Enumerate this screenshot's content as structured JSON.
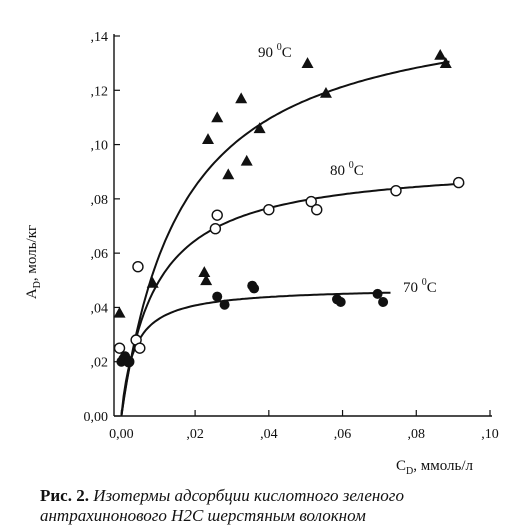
{
  "caption": {
    "lead": "Рис. 2.",
    "text": "Изотермы адсорбции кислотного зеленого антрахинонового Н2С шерстяным волокном"
  },
  "chart_data": {
    "type": "scatter",
    "ylabel": "Aₚ, моль/кг",
    "ylabel_main": "A",
    "ylabel_sub": "D",
    "ylabel_rest": ", моль/кг",
    "xlabel_main": "C",
    "xlabel_sub": "D",
    "xlabel_rest": ", ммоль/л",
    "xlim": [
      -0.002,
      0.1
    ],
    "ylim": [
      0.0,
      0.14
    ],
    "x_ticks": [
      {
        "value": 0.0,
        "label": "0,00"
      },
      {
        "value": 0.02,
        "label": ",02"
      },
      {
        "value": 0.04,
        "label": ",04"
      },
      {
        "value": 0.06,
        "label": ",06"
      },
      {
        "value": 0.08,
        "label": ",08"
      },
      {
        "value": 0.1,
        "label": ",10"
      }
    ],
    "y_ticks": [
      {
        "value": 0.0,
        "label": "0,00"
      },
      {
        "value": 0.02,
        "label": ",02"
      },
      {
        "value": 0.04,
        "label": ",04"
      },
      {
        "value": 0.06,
        "label": ",06"
      },
      {
        "value": 0.08,
        "label": ",08"
      },
      {
        "value": 0.1,
        "label": ",10"
      },
      {
        "value": 0.12,
        "label": ",12"
      },
      {
        "value": 0.14,
        "label": ",14"
      }
    ],
    "grid": false,
    "series": [
      {
        "name": "90 °C",
        "label_main": "90",
        "label_sup": "0",
        "label_unit": "C",
        "marker": "triangle",
        "curve": {
          "qmax": 0.155,
          "k": 60
        },
        "points": [
          [
            -0.0005,
            0.038
          ],
          [
            0.0005,
            0.022
          ],
          [
            0.001,
            0.021
          ],
          [
            0.0085,
            0.049
          ],
          [
            0.0225,
            0.053
          ],
          [
            0.023,
            0.05
          ],
          [
            0.0235,
            0.102
          ],
          [
            0.026,
            0.11
          ],
          [
            0.029,
            0.089
          ],
          [
            0.0325,
            0.117
          ],
          [
            0.034,
            0.094
          ],
          [
            0.0375,
            0.106
          ],
          [
            0.0505,
            0.13
          ],
          [
            0.0555,
            0.119
          ],
          [
            0.0865,
            0.133
          ],
          [
            0.088,
            0.13
          ]
        ]
      },
      {
        "name": "80 °C",
        "label_main": "80",
        "label_sup": "0",
        "label_unit": "C",
        "marker": "circle-open",
        "curve": {
          "qmax": 0.094,
          "k": 110
        },
        "points": [
          [
            -0.0005,
            0.025
          ],
          [
            0.002,
            0.02
          ],
          [
            0.004,
            0.028
          ],
          [
            0.005,
            0.025
          ],
          [
            0.0045,
            0.055
          ],
          [
            0.0255,
            0.069
          ],
          [
            0.026,
            0.074
          ],
          [
            0.04,
            0.076
          ],
          [
            0.0515,
            0.079
          ],
          [
            0.053,
            0.076
          ],
          [
            0.0745,
            0.083
          ],
          [
            0.0915,
            0.086
          ]
        ]
      },
      {
        "name": "70 °C",
        "label_main": "70",
        "label_sup": "0",
        "label_unit": "C",
        "marker": "circle-filled",
        "curve": {
          "qmax": 0.0475,
          "k": 300
        },
        "points": [
          [
            0.0,
            0.02
          ],
          [
            0.0005,
            0.021
          ],
          [
            0.001,
            0.022
          ],
          [
            0.002,
            0.02
          ],
          [
            0.026,
            0.044
          ],
          [
            0.028,
            0.041
          ],
          [
            0.0355,
            0.048
          ],
          [
            0.036,
            0.047
          ],
          [
            0.0585,
            0.043
          ],
          [
            0.0595,
            0.042
          ],
          [
            0.0695,
            0.045
          ],
          [
            0.071,
            0.042
          ]
        ]
      }
    ]
  }
}
